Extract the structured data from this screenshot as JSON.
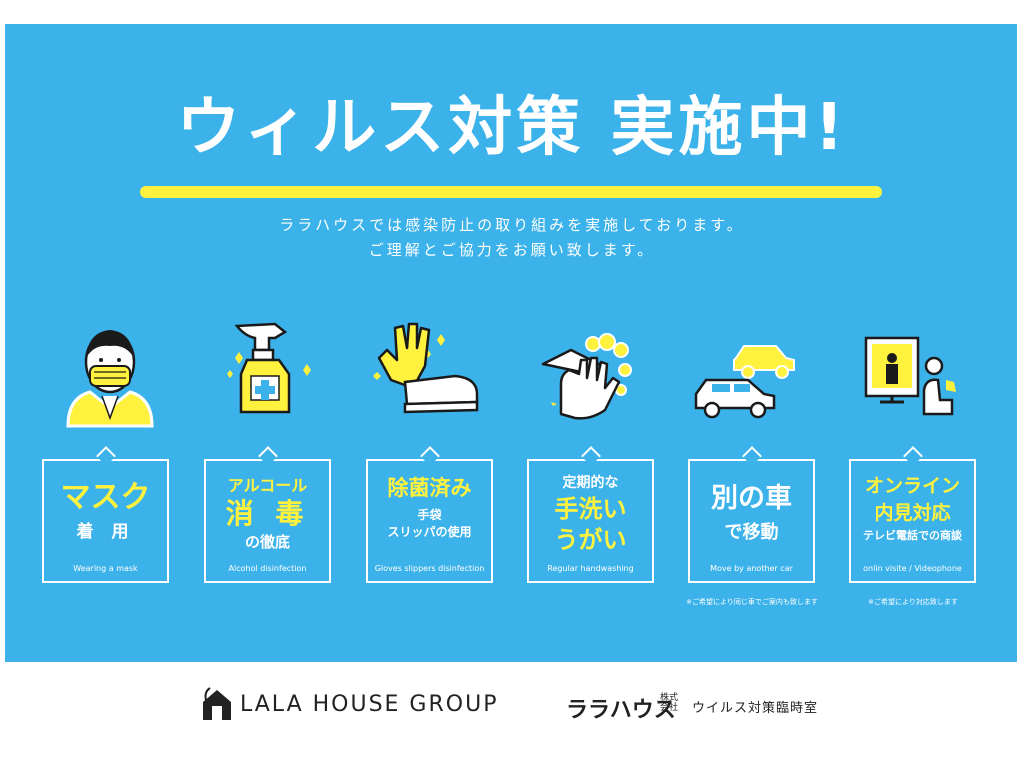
{
  "title": "ウィルス対策 実施中!",
  "subtitle": {
    "line1": "ララハウスでは感染防止の取り組みを実施しております。",
    "line2": "ご理解とご協力をお願い致します。"
  },
  "cards": [
    {
      "line1": "マスク",
      "line2": "着 用",
      "en": "Wearing a mask"
    },
    {
      "line1": "アルコール",
      "line2": "消 毒",
      "line3": "の徹底",
      "en": "Alcohol disinfection"
    },
    {
      "line1": "除菌済み",
      "line2": "手袋",
      "line3": "スリッパの使用",
      "en": "Gloves slippers disinfection"
    },
    {
      "line1": "定期的な",
      "line2": "手洗い",
      "line3": "うがい",
      "en": "Regular handwashing"
    },
    {
      "line1": "別の車",
      "line2": "で移動",
      "en": "Move by another car"
    },
    {
      "line1": "オンライン",
      "line2": "内見対応",
      "line3": "テレビ電話での商談",
      "en": "onlin visite / Videophone"
    }
  ],
  "notes": {
    "car": "※ご希望により同じ車でご案内も致します",
    "online": "※ご希望により対応致します"
  },
  "footer": {
    "brand": "LALA HOUSE GROUP",
    "jp_brand": "ララハウス",
    "kabu1": "株式",
    "kabu2": "会社",
    "office": "ウイルス対策臨時室"
  },
  "colors": {
    "background": "#3cb2ea",
    "accent": "#fff23e",
    "text": "#ffffff"
  }
}
